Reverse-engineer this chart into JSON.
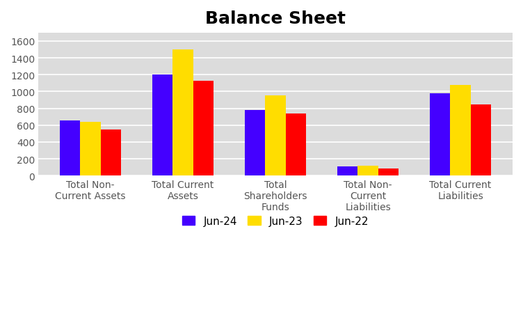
{
  "title": "Balance Sheet",
  "categories": [
    "Total Non-\nCurrent Assets",
    "Total Current\nAssets",
    "Total\nShareholders\nFunds",
    "Total Non-\nCurrent\nLiabilities",
    "Total Current\nLiabilities"
  ],
  "series": {
    "Jun-24": [
      660,
      1205,
      780,
      110,
      980
    ],
    "Jun-23": [
      640,
      1500,
      950,
      115,
      1080
    ],
    "Jun-22": [
      550,
      1130,
      740,
      85,
      848
    ]
  },
  "colors": {
    "Jun-24": "#4400ff",
    "Jun-23": "#ffdd00",
    "Jun-22": "#ff0000"
  },
  "ylim": [
    0,
    1700
  ],
  "yticks": [
    0,
    200,
    400,
    600,
    800,
    1000,
    1200,
    1400,
    1600
  ],
  "fig_bg_color": "#ffffff",
  "plot_bg_color": "#dcdcdc",
  "title_fontsize": 18,
  "legend_fontsize": 11,
  "tick_fontsize": 10,
  "xtick_color": "#555555",
  "ytick_color": "#555555",
  "bar_width": 0.22,
  "grid_color": "#ffffff",
  "grid_linewidth": 1.2
}
